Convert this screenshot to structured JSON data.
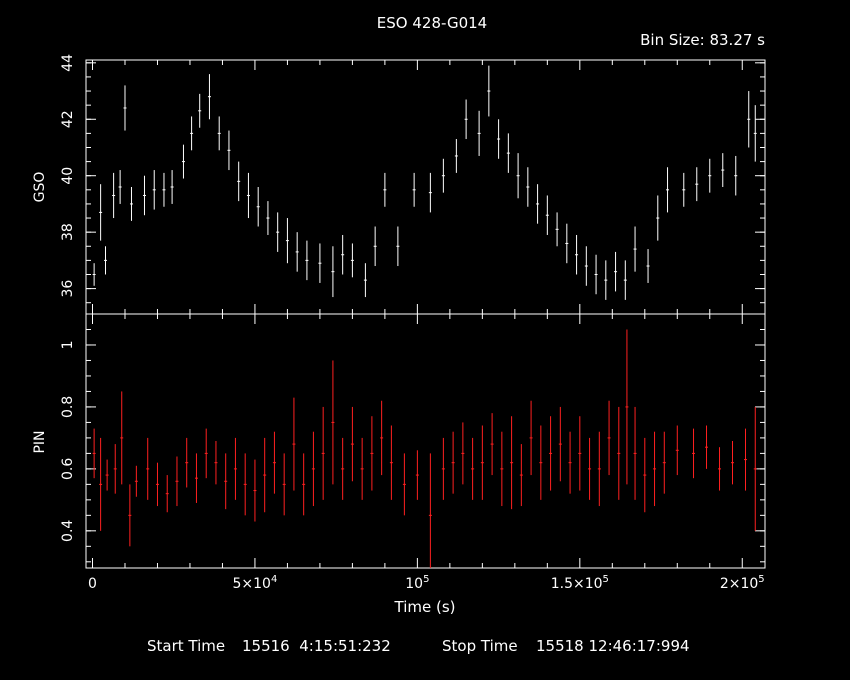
{
  "chart_data": [
    {
      "type": "scatter",
      "title": "ESO 428-G014",
      "annotation": "Bin Size: 83.27 s",
      "ylabel": "GSO",
      "xlim": [
        -2000,
        207000
      ],
      "ylim": [
        35.1,
        44.1
      ],
      "yticks": [
        36,
        38,
        40,
        42,
        44
      ],
      "color": "#ffffff",
      "series": [
        {
          "points": [
            {
              "x": 500,
              "y": 36.5,
              "e": 0.4
            },
            {
              "x": 2500,
              "y": 38.7,
              "e": 1.0
            },
            {
              "x": 4000,
              "y": 37.0,
              "e": 0.5
            },
            {
              "x": 6500,
              "y": 39.3,
              "e": 0.8
            },
            {
              "x": 8500,
              "y": 39.6,
              "e": 0.6
            },
            {
              "x": 10000,
              "y": 42.4,
              "e": 0.8
            },
            {
              "x": 12000,
              "y": 39.0,
              "e": 0.6
            },
            {
              "x": 16000,
              "y": 39.3,
              "e": 0.7
            },
            {
              "x": 19000,
              "y": 39.5,
              "e": 0.7
            },
            {
              "x": 22000,
              "y": 39.5,
              "e": 0.6
            },
            {
              "x": 24500,
              "y": 39.6,
              "e": 0.6
            },
            {
              "x": 28000,
              "y": 40.5,
              "e": 0.6
            },
            {
              "x": 30500,
              "y": 41.5,
              "e": 0.6
            },
            {
              "x": 33000,
              "y": 42.3,
              "e": 0.6
            },
            {
              "x": 36000,
              "y": 42.8,
              "e": 0.8
            },
            {
              "x": 39000,
              "y": 41.5,
              "e": 0.6
            },
            {
              "x": 42000,
              "y": 40.9,
              "e": 0.7
            },
            {
              "x": 45000,
              "y": 39.8,
              "e": 0.7
            },
            {
              "x": 48000,
              "y": 39.3,
              "e": 0.8
            },
            {
              "x": 51000,
              "y": 38.9,
              "e": 0.7
            },
            {
              "x": 54000,
              "y": 38.5,
              "e": 0.6
            },
            {
              "x": 57000,
              "y": 38.0,
              "e": 0.7
            },
            {
              "x": 60000,
              "y": 37.7,
              "e": 0.8
            },
            {
              "x": 63000,
              "y": 37.3,
              "e": 0.7
            },
            {
              "x": 66000,
              "y": 37.0,
              "e": 0.7
            },
            {
              "x": 70000,
              "y": 36.9,
              "e": 0.7
            },
            {
              "x": 74000,
              "y": 36.6,
              "e": 0.9
            },
            {
              "x": 77000,
              "y": 37.2,
              "e": 0.7
            },
            {
              "x": 80000,
              "y": 37.0,
              "e": 0.6
            },
            {
              "x": 84000,
              "y": 36.3,
              "e": 0.6
            },
            {
              "x": 87000,
              "y": 37.5,
              "e": 0.7
            },
            {
              "x": 90000,
              "y": 39.5,
              "e": 0.6
            },
            {
              "x": 94000,
              "y": 37.5,
              "e": 0.7
            },
            {
              "x": 99000,
              "y": 39.5,
              "e": 0.6
            },
            {
              "x": 104000,
              "y": 39.4,
              "e": 0.7
            },
            {
              "x": 108000,
              "y": 40.0,
              "e": 0.6
            },
            {
              "x": 112000,
              "y": 40.7,
              "e": 0.6
            },
            {
              "x": 115000,
              "y": 42.0,
              "e": 0.7
            },
            {
              "x": 119000,
              "y": 41.5,
              "e": 0.8
            },
            {
              "x": 122000,
              "y": 43.0,
              "e": 0.9
            },
            {
              "x": 125000,
              "y": 41.3,
              "e": 0.7
            },
            {
              "x": 128000,
              "y": 40.8,
              "e": 0.7
            },
            {
              "x": 131000,
              "y": 40.0,
              "e": 0.8
            },
            {
              "x": 134000,
              "y": 39.6,
              "e": 0.7
            },
            {
              "x": 137000,
              "y": 39.0,
              "e": 0.7
            },
            {
              "x": 140000,
              "y": 38.6,
              "e": 0.7
            },
            {
              "x": 143000,
              "y": 38.1,
              "e": 0.6
            },
            {
              "x": 146000,
              "y": 37.6,
              "e": 0.7
            },
            {
              "x": 149000,
              "y": 37.2,
              "e": 0.7
            },
            {
              "x": 152000,
              "y": 36.8,
              "e": 0.7
            },
            {
              "x": 155000,
              "y": 36.5,
              "e": 0.7
            },
            {
              "x": 158000,
              "y": 36.3,
              "e": 0.7
            },
            {
              "x": 161000,
              "y": 36.6,
              "e": 0.7
            },
            {
              "x": 164000,
              "y": 36.3,
              "e": 0.7
            },
            {
              "x": 167000,
              "y": 37.4,
              "e": 0.8
            },
            {
              "x": 171000,
              "y": 36.8,
              "e": 0.6
            },
            {
              "x": 174000,
              "y": 38.5,
              "e": 0.8
            },
            {
              "x": 177000,
              "y": 39.5,
              "e": 0.8
            },
            {
              "x": 182000,
              "y": 39.5,
              "e": 0.6
            },
            {
              "x": 186000,
              "y": 39.7,
              "e": 0.6
            },
            {
              "x": 190000,
              "y": 40.0,
              "e": 0.6
            },
            {
              "x": 194000,
              "y": 40.2,
              "e": 0.6
            },
            {
              "x": 198000,
              "y": 40.0,
              "e": 0.7
            },
            {
              "x": 202000,
              "y": 42.0,
              "e": 1.0
            },
            {
              "x": 204000,
              "y": 41.5,
              "e": 1.0
            }
          ]
        }
      ]
    },
    {
      "type": "scatter",
      "ylabel": "PIN",
      "xlabel": "Time (s)",
      "xlim": [
        -2000,
        207000
      ],
      "ylim": [
        0.28,
        1.1
      ],
      "yticks": [
        0.4,
        0.6,
        0.8,
        1
      ],
      "ytick_labels": [
        "0.4",
        "0.6",
        "0.8",
        "1"
      ],
      "xticks": [
        0,
        50000,
        100000,
        150000,
        200000
      ],
      "xtick_labels": [
        {
          "base": "0",
          "exp": ""
        },
        {
          "base": "5×10",
          "exp": "4"
        },
        {
          "base": "10",
          "exp": "5"
        },
        {
          "base": "1.5×10",
          "exp": "5"
        },
        {
          "base": "2×10",
          "exp": "5"
        }
      ],
      "color": "#ff2020",
      "series": [
        {
          "points": [
            {
              "x": 500,
              "y": 0.65,
              "e": 0.08
            },
            {
              "x": 2500,
              "y": 0.55,
              "e": 0.15
            },
            {
              "x": 4500,
              "y": 0.58,
              "e": 0.05
            },
            {
              "x": 7000,
              "y": 0.6,
              "e": 0.08
            },
            {
              "x": 9000,
              "y": 0.7,
              "e": 0.15
            },
            {
              "x": 11500,
              "y": 0.45,
              "e": 0.1
            },
            {
              "x": 13500,
              "y": 0.56,
              "e": 0.05
            },
            {
              "x": 17000,
              "y": 0.6,
              "e": 0.1
            },
            {
              "x": 20000,
              "y": 0.55,
              "e": 0.07
            },
            {
              "x": 23000,
              "y": 0.52,
              "e": 0.06
            },
            {
              "x": 26000,
              "y": 0.56,
              "e": 0.08
            },
            {
              "x": 29000,
              "y": 0.62,
              "e": 0.08
            },
            {
              "x": 32000,
              "y": 0.57,
              "e": 0.08
            },
            {
              "x": 35000,
              "y": 0.65,
              "e": 0.08
            },
            {
              "x": 38000,
              "y": 0.62,
              "e": 0.07
            },
            {
              "x": 41000,
              "y": 0.56,
              "e": 0.09
            },
            {
              "x": 44000,
              "y": 0.6,
              "e": 0.1
            },
            {
              "x": 47000,
              "y": 0.55,
              "e": 0.1
            },
            {
              "x": 50000,
              "y": 0.53,
              "e": 0.1
            },
            {
              "x": 53000,
              "y": 0.58,
              "e": 0.12
            },
            {
              "x": 56000,
              "y": 0.62,
              "e": 0.1
            },
            {
              "x": 59000,
              "y": 0.55,
              "e": 0.1
            },
            {
              "x": 62000,
              "y": 0.68,
              "e": 0.15
            },
            {
              "x": 65000,
              "y": 0.55,
              "e": 0.1
            },
            {
              "x": 68000,
              "y": 0.6,
              "e": 0.12
            },
            {
              "x": 71000,
              "y": 0.65,
              "e": 0.15
            },
            {
              "x": 74000,
              "y": 0.75,
              "e": 0.2
            },
            {
              "x": 77000,
              "y": 0.6,
              "e": 0.1
            },
            {
              "x": 80000,
              "y": 0.68,
              "e": 0.12
            },
            {
              "x": 83000,
              "y": 0.6,
              "e": 0.1
            },
            {
              "x": 86000,
              "y": 0.65,
              "e": 0.12
            },
            {
              "x": 89000,
              "y": 0.7,
              "e": 0.12
            },
            {
              "x": 92000,
              "y": 0.62,
              "e": 0.12
            },
            {
              "x": 96000,
              "y": 0.55,
              "e": 0.1
            },
            {
              "x": 100000,
              "y": 0.58,
              "e": 0.08
            },
            {
              "x": 104000,
              "y": 0.45,
              "e": 0.2
            },
            {
              "x": 108000,
              "y": 0.6,
              "e": 0.1
            },
            {
              "x": 111000,
              "y": 0.62,
              "e": 0.1
            },
            {
              "x": 114000,
              "y": 0.65,
              "e": 0.1
            },
            {
              "x": 117000,
              "y": 0.6,
              "e": 0.1
            },
            {
              "x": 120000,
              "y": 0.62,
              "e": 0.12
            },
            {
              "x": 123000,
              "y": 0.68,
              "e": 0.1
            },
            {
              "x": 126000,
              "y": 0.6,
              "e": 0.12
            },
            {
              "x": 129000,
              "y": 0.62,
              "e": 0.15
            },
            {
              "x": 132000,
              "y": 0.58,
              "e": 0.1
            },
            {
              "x": 135000,
              "y": 0.7,
              "e": 0.12
            },
            {
              "x": 138000,
              "y": 0.62,
              "e": 0.12
            },
            {
              "x": 141000,
              "y": 0.65,
              "e": 0.12
            },
            {
              "x": 144000,
              "y": 0.68,
              "e": 0.12
            },
            {
              "x": 147000,
              "y": 0.62,
              "e": 0.1
            },
            {
              "x": 150000,
              "y": 0.65,
              "e": 0.12
            },
            {
              "x": 153000,
              "y": 0.6,
              "e": 0.1
            },
            {
              "x": 156000,
              "y": 0.6,
              "e": 0.12
            },
            {
              "x": 159000,
              "y": 0.7,
              "e": 0.12
            },
            {
              "x": 162000,
              "y": 0.65,
              "e": 0.15
            },
            {
              "x": 164500,
              "y": 0.8,
              "e": 0.25
            },
            {
              "x": 167000,
              "y": 0.65,
              "e": 0.15
            },
            {
              "x": 170000,
              "y": 0.58,
              "e": 0.12
            },
            {
              "x": 173000,
              "y": 0.6,
              "e": 0.12
            },
            {
              "x": 176000,
              "y": 0.62,
              "e": 0.1
            },
            {
              "x": 180000,
              "y": 0.66,
              "e": 0.08
            },
            {
              "x": 185000,
              "y": 0.65,
              "e": 0.08
            },
            {
              "x": 189000,
              "y": 0.67,
              "e": 0.07
            },
            {
              "x": 193000,
              "y": 0.6,
              "e": 0.07
            },
            {
              "x": 197000,
              "y": 0.62,
              "e": 0.07
            },
            {
              "x": 201000,
              "y": 0.63,
              "e": 0.1
            },
            {
              "x": 204000,
              "y": 0.6,
              "e": 0.2
            }
          ]
        }
      ]
    }
  ],
  "footer": {
    "start_label": "Start Time",
    "start_value": "15516  4:15:51:232",
    "stop_label": "Stop Time",
    "stop_value": "15518 12:46:17:994"
  }
}
